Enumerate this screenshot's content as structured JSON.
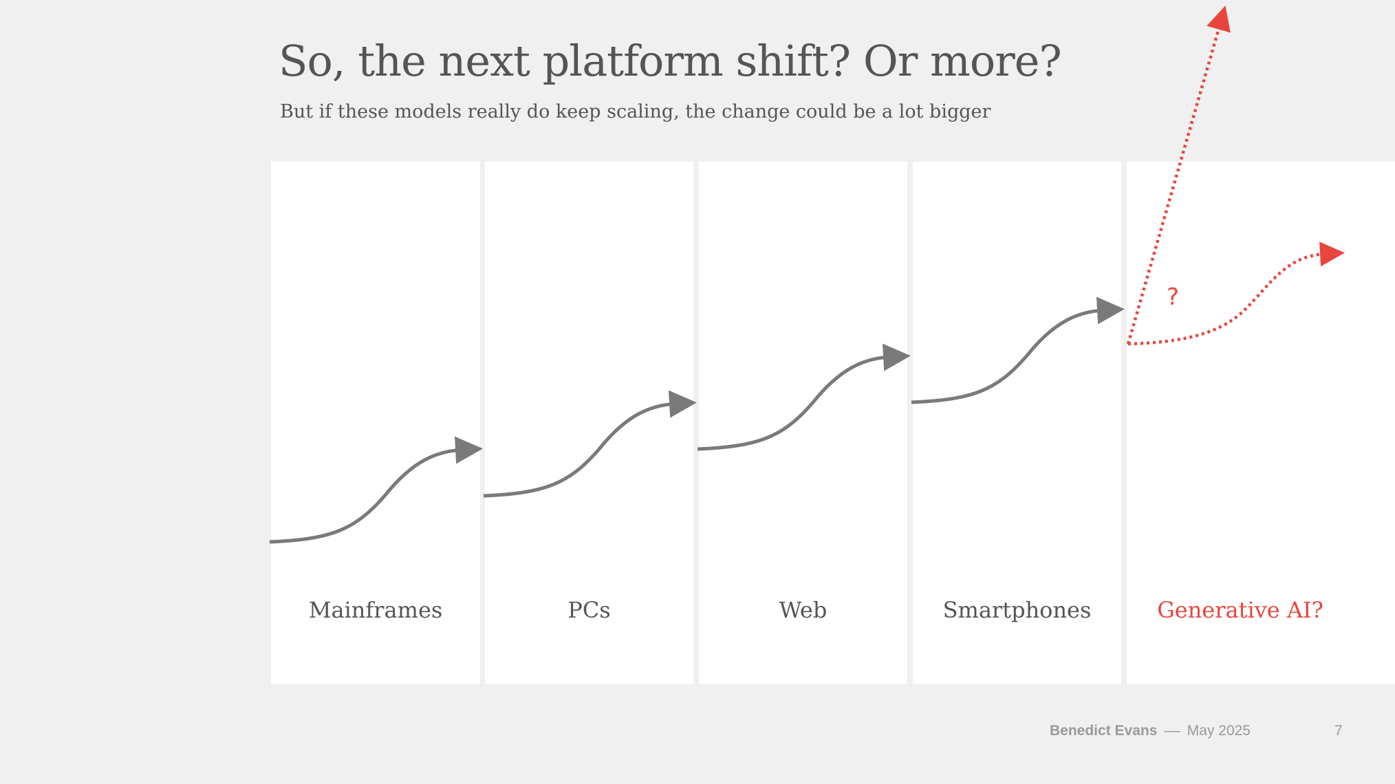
{
  "slide": {
    "title": "So, the next platform shift? Or more?",
    "subtitle": "But if these models really do keep scaling, the change could be a lot bigger"
  },
  "platforms": [
    {
      "label": "Mainframes"
    },
    {
      "label": "PCs"
    },
    {
      "label": "Web"
    },
    {
      "label": "Smartphones"
    },
    {
      "label": "Generative AI?"
    }
  ],
  "annotation": {
    "question_mark": "?"
  },
  "footer": {
    "author": "Benedict Evans",
    "separator": "––",
    "date": "May 2025",
    "page_number": "7"
  },
  "colors": {
    "curve": "#7a7a7a",
    "accent": "#e8453c",
    "background": "#f0f0f0",
    "panel": "#ffffff"
  }
}
